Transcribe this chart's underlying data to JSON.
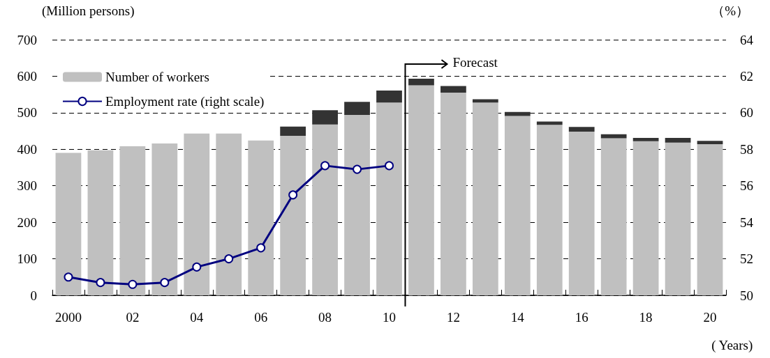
{
  "chart_data": {
    "type": "bar",
    "stacked": true,
    "ylabel": "(Million persons)",
    "y2label": "（%）",
    "xlabel": "( Years)",
    "categories": [
      "2000",
      null,
      "02",
      null,
      "04",
      null,
      "06",
      null,
      "08",
      null,
      "10",
      null,
      "12",
      null,
      "14",
      null,
      "16",
      null,
      "18",
      null,
      "20"
    ],
    "series": [
      {
        "name": "Number of workers",
        "color": "#c0c0c0",
        "values": [
          390,
          397,
          408,
          416,
          443,
          443,
          424,
          437,
          468,
          494,
          528,
          575,
          555,
          528,
          491,
          467,
          448,
          430,
          422,
          418,
          414
        ]
      },
      {
        "color": "#333333",
        "values": [
          null,
          null,
          null,
          null,
          null,
          null,
          null,
          25,
          39,
          36,
          33,
          18,
          18,
          9,
          11,
          9,
          13,
          11,
          9,
          13,
          9
        ]
      },
      {
        "name": "Employment rate (right scale)",
        "type": "line",
        "axis": "y2",
        "color": "#000080",
        "marker": "circle",
        "line_style": "solid",
        "values": [
          51.0,
          50.7,
          50.6,
          50.7,
          51.55,
          52.0,
          52.6,
          55.5,
          57.1,
          56.9,
          57.1,
          null,
          null,
          null,
          null,
          null,
          null,
          null,
          null,
          null,
          null
        ]
      }
    ],
    "ylim": [
      0,
      700
    ],
    "yticks": [
      0,
      100,
      200,
      300,
      400,
      500,
      600,
      700
    ],
    "y2lim": [
      50,
      64
    ],
    "y2ticks": [
      50,
      52,
      54,
      56,
      58,
      60,
      62,
      64
    ],
    "grid": "y",
    "legend": "top left",
    "annotations": [
      "Forecast"
    ]
  }
}
